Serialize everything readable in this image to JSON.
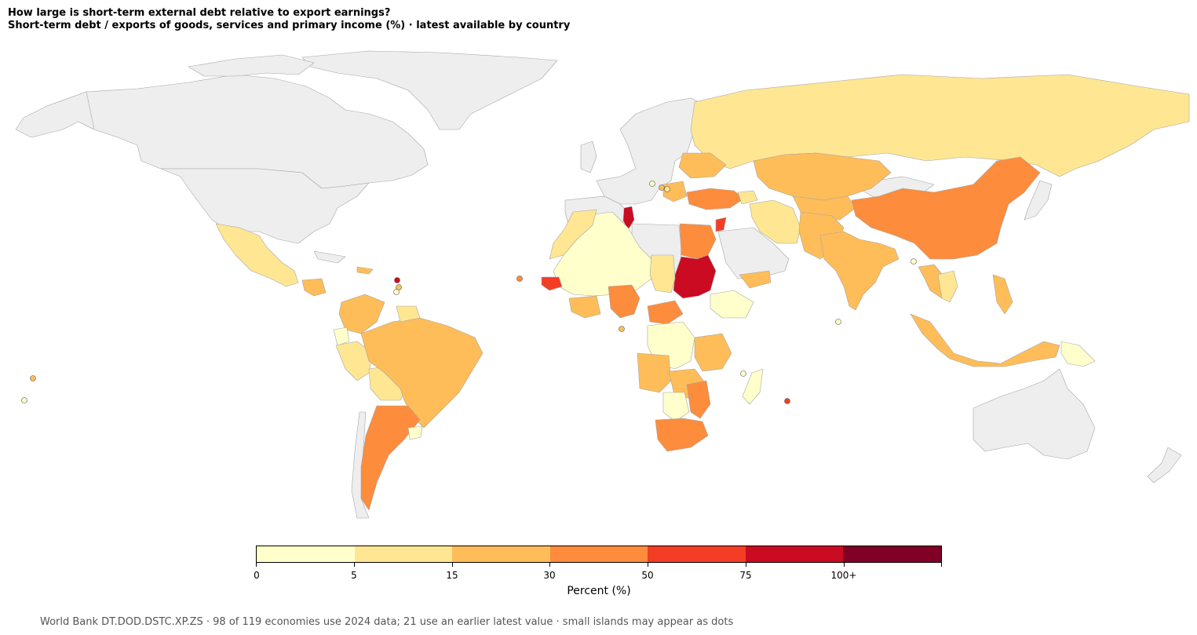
{
  "title": {
    "line1": "How large is short-term external debt relative to export earnings?",
    "line2": "Short-term debt / exports of goods, services and primary income (%) · latest available by country"
  },
  "colors": {
    "no_data": "#eeeeee",
    "border": "#a6a6a6",
    "ocean": "#ffffff",
    "bins": [
      "#ffffcc",
      "#ffe693",
      "#febd59",
      "#fd8c3c",
      "#f43d25",
      "#ca0b22",
      "#800026"
    ]
  },
  "legend": {
    "tick_labels": [
      "0",
      "5",
      "15",
      "30",
      "50",
      "75",
      "100+"
    ],
    "label": "Percent (%)"
  },
  "footnote": "World Bank DT.DOD.DSTC.XP.ZS · 98 of 119 economies use 2024 data; 21 use an earlier latest value · small islands may appear as dots"
}
